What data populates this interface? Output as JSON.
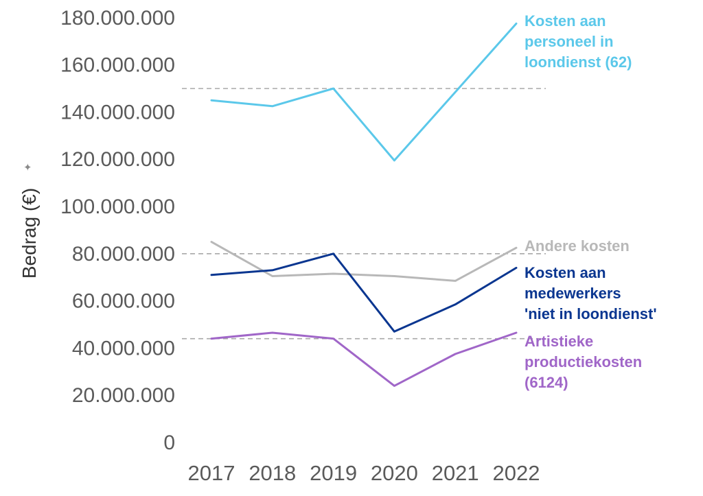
{
  "chart_data": {
    "type": "line",
    "x": [
      "2017",
      "2018",
      "2019",
      "2020",
      "2021",
      "2022"
    ],
    "ylabel": "Bedrag (€)",
    "y_ticks": [
      "0",
      "20.000.000",
      "40.000.000",
      "60.000.000",
      "80.000.000",
      "100.000.000",
      "120.000.000",
      "140.000.000",
      "160.000.000",
      "180.000.000"
    ],
    "ylim": [
      0,
      185000000
    ],
    "reference_lines": [
      150000000,
      80000000,
      44000000
    ],
    "legend": "right, inline at line ends",
    "series": [
      {
        "label_lines": [
          "Kosten aan",
          "personeel in",
          "loondienst (62)"
        ],
        "color": "#5bc8ea",
        "values": [
          145000000,
          142500000,
          150000000,
          119500000,
          148500000,
          177500000
        ]
      },
      {
        "label_lines": [
          "Andere kosten"
        ],
        "color": "#b8b8b8",
        "values": [
          85000000,
          70500000,
          71500000,
          70500000,
          68500000,
          82500000
        ]
      },
      {
        "label_lines": [
          "Kosten aan",
          "medewerkers",
          "'niet in loondienst'"
        ],
        "color": "#0a3690",
        "values": [
          71000000,
          73000000,
          80000000,
          47000000,
          58500000,
          74000000
        ]
      },
      {
        "label_lines": [
          "Artistieke",
          "productiekosten",
          "(6124)"
        ],
        "color": "#a066c8",
        "values": [
          44000000,
          46500000,
          44000000,
          24000000,
          37500000,
          46500000
        ]
      }
    ]
  }
}
